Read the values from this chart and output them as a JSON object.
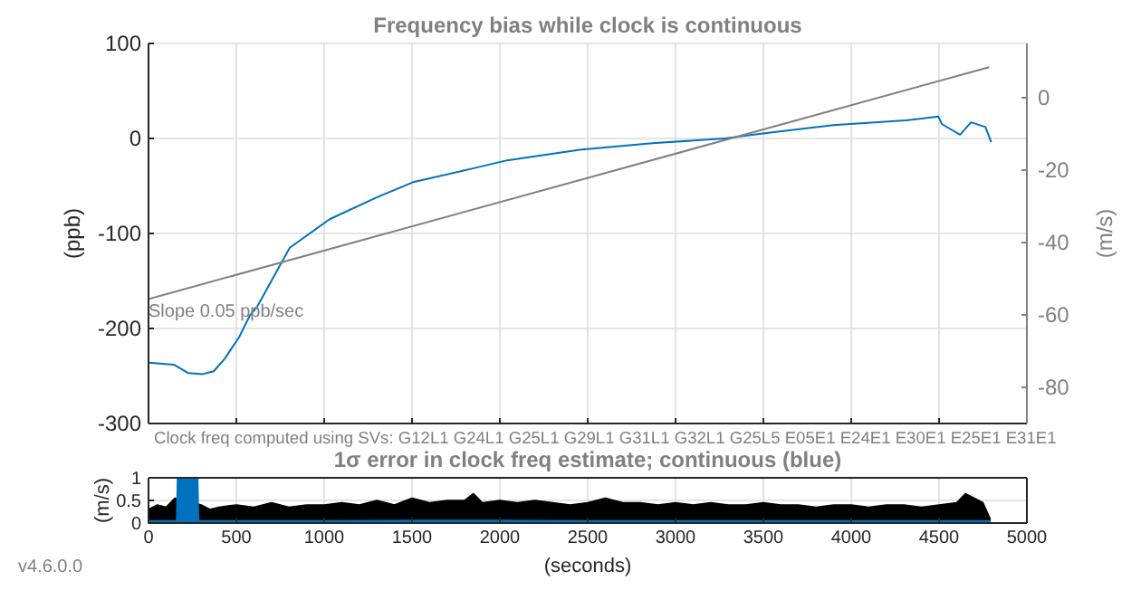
{
  "chart_data": [
    {
      "type": "line",
      "title": "Frequency bias while clock is continuous",
      "ylabel": "(ppb)",
      "y2label": "(m/s)",
      "xlim": [
        0,
        5000
      ],
      "xticks": [
        0,
        500,
        1000,
        1500,
        2000,
        2500,
        3000,
        3500,
        4000,
        4500,
        5000
      ],
      "ylim": [
        -300,
        100
      ],
      "yticks": [
        -300,
        -200,
        -100,
        0,
        100
      ],
      "y2lim": [
        -90,
        15
      ],
      "y2ticks": [
        -80,
        -60,
        -40,
        -20,
        0
      ],
      "tick_labels": "y",
      "grid": true,
      "annotations": [
        "Slope 0.05 ppb/sec",
        "Clock freq computed using SVs:  G12L1 G24L1 G25L1 G29L1 G31L1 G32L1 G25L5 E05E1 E24E1 E30E1 E25E1 E31E1"
      ],
      "series": [
        {
          "color": "#0072bd",
          "x": [
            0,
            144,
            227,
            309,
            371,
            433,
            516,
            578,
            619,
            804,
            1031,
            1299,
            1506,
            1836,
            2042,
            2454,
            2867,
            3279,
            3486,
            3898,
            4311,
            4496,
            4517,
            4620,
            4682,
            4764,
            4797
          ],
          "values": [
            -236,
            -238,
            -247,
            -248,
            -245,
            -232,
            -209,
            -186,
            -177,
            -115,
            -85,
            -62,
            -46,
            -32,
            -23,
            -12,
            -5,
            0,
            5,
            14,
            19,
            23,
            15,
            4,
            17,
            12,
            -4
          ]
        },
        {
          "type": "line",
          "color": "#808080",
          "x": [
            0,
            4785
          ],
          "values": [
            -169,
            75
          ]
        }
      ]
    },
    {
      "type": "area",
      "title": "1σ error in clock freq estimate; continuous (blue)",
      "ylabel": "(m/s)",
      "xlabel": "(seconds)",
      "xlim": [
        0,
        5000
      ],
      "xticks": [
        0,
        500,
        1000,
        1500,
        2000,
        2500,
        3000,
        3500,
        4000,
        4500,
        5000
      ],
      "ylim": [
        0,
        1
      ],
      "yticks": [
        0,
        0.5,
        1
      ],
      "grid": true,
      "annotations": [
        "v4.6.0.0"
      ],
      "series": [
        {
          "color": "#000000",
          "x": [
            0,
            50,
            100,
            150,
            300,
            350,
            400,
            500,
            600,
            700,
            800,
            900,
            1000,
            1100,
            1200,
            1300,
            1400,
            1500,
            1600,
            1700,
            1800,
            1850,
            1900,
            2000,
            2100,
            2200,
            2300,
            2400,
            2500,
            2600,
            2700,
            2800,
            2900,
            3000,
            3100,
            3200,
            3300,
            3400,
            3500,
            3600,
            3700,
            3800,
            3900,
            4000,
            4100,
            4200,
            4300,
            4400,
            4500,
            4600,
            4650,
            4700,
            4750,
            4790
          ],
          "values": [
            0.3,
            0.4,
            0.35,
            0.55,
            0.4,
            0.3,
            0.35,
            0.4,
            0.35,
            0.45,
            0.35,
            0.4,
            0.4,
            0.45,
            0.4,
            0.5,
            0.4,
            0.55,
            0.45,
            0.5,
            0.5,
            0.65,
            0.45,
            0.5,
            0.45,
            0.5,
            0.45,
            0.4,
            0.45,
            0.55,
            0.45,
            0.45,
            0.4,
            0.45,
            0.4,
            0.45,
            0.4,
            0.4,
            0.45,
            0.4,
            0.4,
            0.35,
            0.4,
            0.4,
            0.35,
            0.4,
            0.4,
            0.35,
            0.4,
            0.45,
            0.65,
            0.55,
            0.45,
            0.1
          ]
        },
        {
          "color": "#0072bd",
          "x": [
            0,
            160,
            165,
            280,
            285,
            500,
            1000,
            1500,
            2000,
            2500,
            3000,
            3500,
            4000,
            4500,
            4790
          ],
          "values": [
            0.05,
            0.05,
            1,
            1,
            0.05,
            0.05,
            0.05,
            0.06,
            0.06,
            0.05,
            0.05,
            0.05,
            0.05,
            0.05,
            0.05
          ]
        }
      ]
    }
  ]
}
